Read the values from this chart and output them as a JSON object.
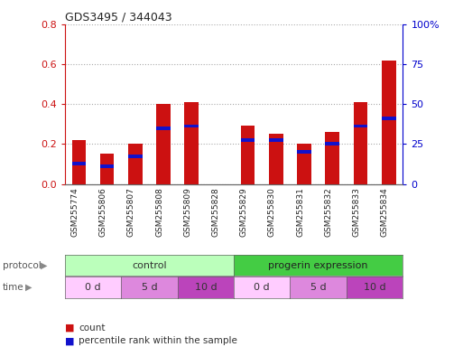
{
  "title": "GDS3495 / 344043",
  "samples": [
    "GSM255774",
    "GSM255806",
    "GSM255807",
    "GSM255808",
    "GSM255809",
    "GSM255828",
    "GSM255829",
    "GSM255830",
    "GSM255831",
    "GSM255832",
    "GSM255833",
    "GSM255834"
  ],
  "count_values": [
    0.22,
    0.15,
    0.2,
    0.4,
    0.41,
    0.0,
    0.29,
    0.25,
    0.2,
    0.26,
    0.41,
    0.62
  ],
  "percentile_values": [
    0.1,
    0.09,
    0.14,
    0.28,
    0.29,
    0.0,
    0.22,
    0.22,
    0.16,
    0.2,
    0.29,
    0.33
  ],
  "count_color": "#cc1111",
  "percentile_color": "#1111cc",
  "ylim_left": [
    0,
    0.8
  ],
  "ylim_right": [
    0,
    100
  ],
  "yticks_left": [
    0,
    0.2,
    0.4,
    0.6,
    0.8
  ],
  "yticks_right": [
    0,
    25,
    50,
    75,
    100
  ],
  "ytick_labels_right": [
    "0",
    "25",
    "50",
    "75",
    "100%"
  ],
  "bar_width": 0.5,
  "background_color": "#ffffff",
  "grid_color": "#aaaaaa",
  "tick_color_left": "#cc1111",
  "tick_color_right": "#0000cc",
  "proto_light": "#bbffbb",
  "proto_dark": "#44cc44",
  "time_light": "#ffccff",
  "time_medium": "#dd88dd",
  "time_dark": "#bb44bb"
}
